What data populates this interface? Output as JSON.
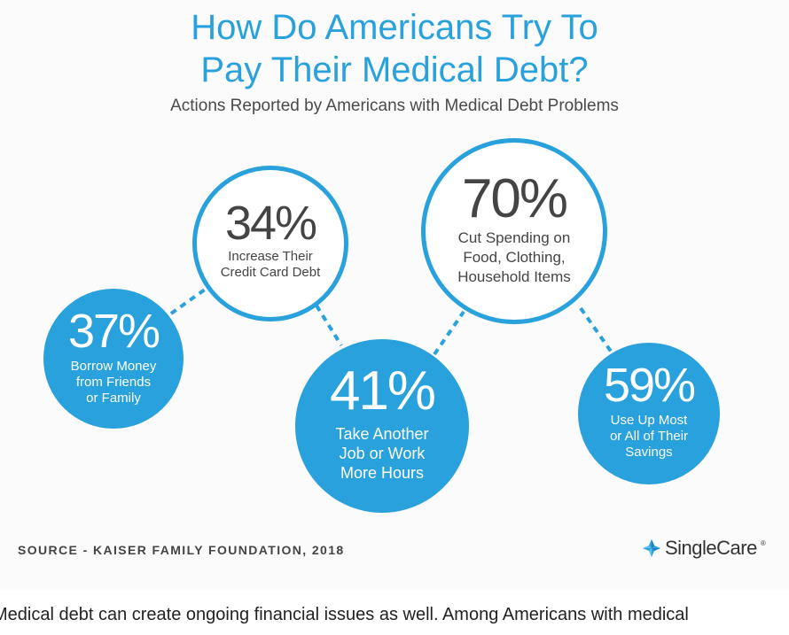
{
  "title_line1": "How Do Americans Try To",
  "title_line2": "Pay Their Medical Debt?",
  "subtitle": "Actions Reported by Americans with Medical Debt Problems",
  "stats": [
    {
      "percent": "37%",
      "description": "Borrow Money\nfrom Friends\nor Family",
      "style": "filled"
    },
    {
      "percent": "34%",
      "description": "Increase Their\nCredit Card Debt",
      "style": "outline"
    },
    {
      "percent": "41%",
      "description": "Take Another\nJob or Work\nMore Hours",
      "style": "filled"
    },
    {
      "percent": "70%",
      "description": "Cut Spending on\nFood, Clothing,\nHousehold Items",
      "style": "outline"
    },
    {
      "percent": "59%",
      "description": "Use Up Most\nor All of Their\nSavings",
      "style": "filled"
    }
  ],
  "source": "SOURCE - KAISER FAMILY FOUNDATION, 2018",
  "brand": {
    "name": "SingleCare",
    "tm": "®",
    "icon": "cross-icon"
  },
  "body_text": "Medical debt can create ongoing financial issues as well. Among Americans with medical",
  "colors": {
    "accent": "#29a1dc",
    "text_dark": "#444444",
    "background": "#fbfbfb"
  }
}
